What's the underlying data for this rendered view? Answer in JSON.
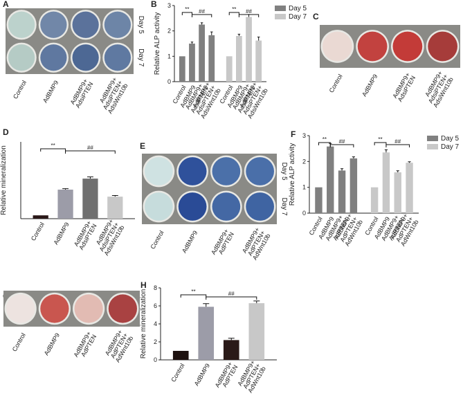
{
  "image_panels": [
    {
      "letter": "A",
      "labels": [
        "Control",
        "AdBMP9",
        "AdBMP9+AdsiPTEN",
        "AdBMP9+AdsiPTEN+AdsiWnt10b"
      ],
      "rows": [
        "Day 5",
        "Day 7"
      ],
      "plate_colors": [
        [
          "#bcd2cc",
          "#7187a8",
          "#5b729b",
          "#6d85a7"
        ],
        [
          "#b5cbc5",
          "#5f78a0",
          "#4d6894",
          "#5f79a1"
        ]
      ]
    },
    {
      "letter": "C",
      "labels": [
        "Control",
        "AdBMP9",
        "AdBMP9+AdsiPTEN",
        "AdBMP9+AdsiPTEN+AdsiWnt10b"
      ],
      "plate_colors": [
        [
          "#ead9d3",
          "#c2423f",
          "#c33b38",
          "#a63c3a"
        ]
      ]
    },
    {
      "letter": "E",
      "labels": [
        "Control",
        "AdBMP9",
        "AdBMP9+AdPTEN",
        "AdBMP9+AdPTEN+AdWnt10b"
      ],
      "rows": [
        "Day 5",
        "Day 7"
      ],
      "plate_colors": [
        [
          "#cfe2e2",
          "#2f519b",
          "#4b70a9",
          "#4a6fa9"
        ],
        [
          "#c6dcdc",
          "#2a4b96",
          "#4468a4",
          "#3f64a2"
        ]
      ]
    },
    {
      "letter": "G",
      "labels": [
        "Control",
        "AdBMP9",
        "AdBMP9+AdPTEN",
        "AdBMP9+AdPTEN+AdWnt10b"
      ],
      "plate_colors": [
        [
          "#ede3e0",
          "#c9564f",
          "#e2bbb3",
          "#a94242"
        ]
      ]
    }
  ],
  "chart_data": [
    {
      "type": "bar",
      "letter": "B",
      "ylabel": "Relative ALP activity",
      "ylim": [
        0,
        3
      ],
      "yticks": [
        0,
        1,
        2,
        3
      ],
      "categories": [
        "Control",
        "AdBMP9",
        "AdBMP9+AdsiPTEN",
        "AdBMP9+AdsiPTEN+AdsiWnt10b"
      ],
      "series": [
        {
          "name": "Day 5",
          "color": "#808080",
          "values": [
            1,
            1.5,
            2.25,
            1.83
          ],
          "errors": [
            0,
            0.06,
            0.07,
            0.13
          ]
        },
        {
          "name": "Day 7",
          "color": "#c8c8c8",
          "values": [
            1,
            1.8,
            2.55,
            1.62
          ],
          "errors": [
            0,
            0.07,
            0.1,
            0.14
          ]
        }
      ],
      "annotations": [
        "**",
        "##"
      ],
      "legend": "right"
    },
    {
      "type": "bar",
      "letter": "D",
      "ylabel": "Relative mineralization",
      "ylim": [
        0,
        23
      ],
      "categories": [
        "Control",
        "AdBMP9",
        "AdBMP9+AdsiPTEN",
        "AdBMP9+AdsiPTEN+AdsiWnt10b"
      ],
      "values": [
        1,
        8.7,
        12,
        6.6
      ],
      "errors": [
        0,
        0.3,
        0.5,
        0.35
      ],
      "colors": [
        "#2a1818",
        "#9c9ca8",
        "#707070",
        "#c8c8c8"
      ],
      "annotations": [
        "**",
        "##"
      ]
    },
    {
      "type": "bar",
      "letter": "F",
      "ylabel": "Relative ALP activity",
      "ylim": [
        0,
        3
      ],
      "yticks": [
        0,
        1,
        2,
        3
      ],
      "categories": [
        "Control",
        "AdBMP9",
        "AdBMP9+AdPTEN",
        "AdBMP9+AdPTEN+AdWnt10b"
      ],
      "series": [
        {
          "name": "Day 5",
          "color": "#808080",
          "values": [
            1,
            2.58,
            1.65,
            2.12
          ],
          "errors": [
            0,
            0.12,
            0.07,
            0.06
          ]
        },
        {
          "name": "Day 7",
          "color": "#c8c8c8",
          "values": [
            1,
            2.35,
            1.58,
            1.95
          ],
          "errors": [
            0,
            0.1,
            0.06,
            0.04
          ]
        }
      ],
      "annotations": [
        "**",
        "##"
      ],
      "legend": "right"
    },
    {
      "type": "bar",
      "letter": "H",
      "ylabel": "Relative mineralization",
      "ylim": [
        0,
        8
      ],
      "yticks": [
        0,
        2,
        4,
        6,
        8
      ],
      "categories": [
        "Control",
        "AdBMP9",
        "AdBMP9+AdPTEN",
        "AdBMP9+AdPTEN+AdWnt10b"
      ],
      "values": [
        1,
        5.9,
        2.2,
        6.3
      ],
      "errors": [
        0,
        0.35,
        0.2,
        0.25
      ],
      "colors": [
        "#1e1210",
        "#9c9ca8",
        "#2a1a18",
        "#c8c8c8"
      ],
      "annotations": [
        "**",
        "##"
      ]
    }
  ]
}
